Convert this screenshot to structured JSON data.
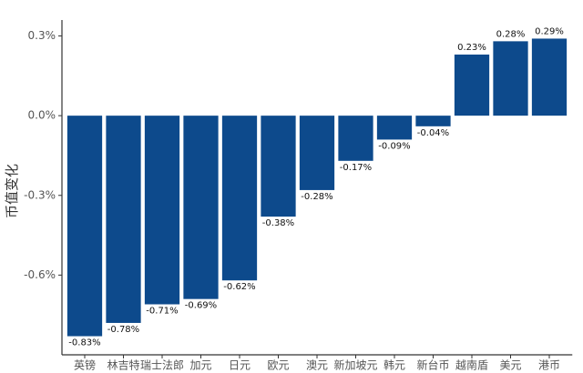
{
  "chart_data": {
    "type": "bar",
    "y_label": "币值变化",
    "categories": [
      "英镑",
      "林吉特",
      "瑞士法郎",
      "加元",
      "日元",
      "欧元",
      "澳元",
      "新加坡元",
      "韩元",
      "新台币",
      "越南盾",
      "美元",
      "港币"
    ],
    "values": [
      -0.83,
      -0.78,
      -0.71,
      -0.69,
      -0.62,
      -0.38,
      -0.28,
      -0.17,
      -0.09,
      -0.04,
      0.23,
      0.28,
      0.29
    ],
    "value_labels": [
      "-0.83%",
      "-0.78%",
      "-0.71%",
      "-0.69%",
      "-0.62%",
      "-0.38%",
      "-0.28%",
      "-0.17%",
      "-0.09%",
      "-0.04%",
      "0.23%",
      "0.28%",
      "0.29%"
    ],
    "color": "#0d4a8c",
    "ylim": [
      -0.9,
      0.36
    ],
    "yticks": [
      {
        "value": -0.6,
        "label": "-0.6%"
      },
      {
        "value": -0.3,
        "label": "-0.3%"
      },
      {
        "value": 0,
        "label": "0.0%"
      },
      {
        "value": 0.3,
        "label": "0.3%"
      }
    ],
    "grid": false
  }
}
